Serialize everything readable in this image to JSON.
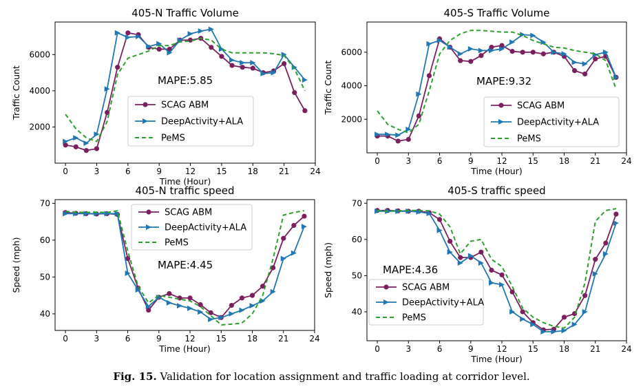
{
  "figure": {
    "caption_label": "Fig. 15.",
    "caption_text": "Validation for location assignment and traffic loading at corridor level."
  },
  "colors": {
    "scag": "#7b1f5e",
    "deep": "#1f77b4",
    "pems": "#2ca02c"
  },
  "chart_data": [
    {
      "type": "line",
      "title": "405-N Traffic Volume",
      "xlabel": "Time (Hour)",
      "ylabel": "Traffic Count",
      "xlim": [
        -1,
        24
      ],
      "ylim": [
        0,
        7800
      ],
      "xticks": [
        0,
        3,
        6,
        9,
        12,
        15,
        18,
        21,
        24
      ],
      "yticks": [
        2000,
        4000,
        6000
      ],
      "annotation": "MAPE:5.85",
      "legend": "center-right",
      "x": [
        0,
        1,
        2,
        3,
        4,
        5,
        6,
        7,
        8,
        9,
        10,
        11,
        12,
        13,
        14,
        15,
        16,
        17,
        18,
        19,
        20,
        21,
        22,
        23
      ],
      "series": [
        {
          "name": "SCAG ABM",
          "style": "circle",
          "values": [
            1000,
            900,
            700,
            800,
            2800,
            5300,
            7200,
            7100,
            6400,
            6300,
            6300,
            6800,
            6800,
            6900,
            6400,
            5900,
            5400,
            5300,
            5250,
            5000,
            5100,
            5500,
            3900,
            2900
          ]
        },
        {
          "name": "DeepActivity+ALA",
          "style": "triangle",
          "values": [
            1200,
            1400,
            1100,
            1600,
            4100,
            7200,
            6950,
            7000,
            6450,
            6600,
            6100,
            6800,
            7150,
            7300,
            7400,
            6300,
            5700,
            5550,
            5550,
            4950,
            5000,
            6000,
            5300,
            4600
          ]
        },
        {
          "name": "PeMS",
          "style": "dashed",
          "values": [
            2700,
            1900,
            1400,
            1200,
            2300,
            4900,
            5800,
            6000,
            6200,
            6500,
            6500,
            6700,
            6750,
            6900,
            6800,
            6300,
            6100,
            6100,
            6100,
            6100,
            6050,
            5950,
            5200,
            4000
          ]
        }
      ]
    },
    {
      "type": "line",
      "title": "405-S Traffic Volume",
      "xlabel": "Time (Hour)",
      "ylabel": "Traffic Count",
      "xlim": [
        -1,
        24
      ],
      "ylim": [
        0,
        7800
      ],
      "xticks": [
        0,
        3,
        6,
        9,
        12,
        15,
        18,
        21,
        24
      ],
      "yticks": [
        2000,
        4000,
        6000
      ],
      "annotation": "MAPE:9.32",
      "legend": "lower-right",
      "x": [
        0,
        1,
        2,
        3,
        4,
        5,
        6,
        7,
        8,
        9,
        10,
        11,
        12,
        13,
        14,
        15,
        16,
        17,
        18,
        19,
        20,
        21,
        22,
        23
      ],
      "series": [
        {
          "name": "SCAG ABM",
          "style": "circle",
          "values": [
            1000,
            1000,
            700,
            800,
            2200,
            4600,
            6800,
            6300,
            5500,
            5450,
            5800,
            6300,
            6400,
            6050,
            6000,
            6000,
            5900,
            6000,
            5750,
            4900,
            4700,
            5600,
            5750,
            4500
          ]
        },
        {
          "name": "DeepActivity+ALA",
          "style": "triangle",
          "values": [
            1100,
            1100,
            1050,
            1400,
            3500,
            6500,
            6700,
            6300,
            5900,
            6200,
            6100,
            6100,
            6200,
            6600,
            7050,
            7000,
            6600,
            6000,
            5900,
            5400,
            5300,
            5850,
            6000,
            4500
          ]
        },
        {
          "name": "PeMS",
          "style": "dashed",
          "values": [
            2500,
            1700,
            1400,
            1200,
            1700,
            3700,
            5900,
            6700,
            7100,
            7300,
            7300,
            7250,
            7200,
            7200,
            7000,
            6700,
            6500,
            6300,
            6250,
            6100,
            6000,
            5900,
            5500,
            3800
          ]
        }
      ]
    },
    {
      "type": "line",
      "title": "405-N traffic speed",
      "xlabel": "Time (Hour)",
      "ylabel": "Speed (mph)",
      "xlim": [
        -1,
        24
      ],
      "ylim": [
        35.5,
        71
      ],
      "xticks": [
        0,
        3,
        6,
        9,
        12,
        15,
        18,
        21,
        24
      ],
      "yticks": [
        40,
        50,
        60,
        70
      ],
      "annotation": "MAPE:4.45",
      "legend": "upper-center",
      "x": [
        0,
        1,
        2,
        3,
        4,
        5,
        6,
        7,
        8,
        9,
        10,
        11,
        12,
        13,
        14,
        15,
        16,
        17,
        18,
        19,
        20,
        21,
        22,
        23
      ],
      "series": [
        {
          "name": "SCAG ABM",
          "style": "circle",
          "values": [
            67.5,
            67.3,
            67.2,
            67.1,
            67.2,
            67.0,
            55.0,
            47.0,
            41.0,
            44.5,
            45.5,
            44.3,
            44.3,
            42.5,
            40.3,
            39.0,
            42.3,
            44.3,
            45.0,
            47.5,
            52.5,
            60.5,
            64.0,
            66.5
          ]
        },
        {
          "name": "DeepActivity+ALA",
          "style": "triangle",
          "values": [
            67.2,
            67.2,
            67.2,
            67.2,
            67.2,
            67.2,
            51.0,
            46.5,
            42.0,
            44.5,
            43.0,
            42.2,
            41.5,
            40.5,
            38.5,
            39.0,
            40.0,
            41.0,
            42.2,
            43.5,
            46.0,
            55.0,
            56.5,
            63.7
          ]
        },
        {
          "name": "PeMS",
          "style": "dashed",
          "values": [
            67.8,
            67.6,
            67.5,
            67.6,
            67.5,
            68.0,
            57.0,
            47.5,
            43.0,
            45.0,
            44.5,
            44.0,
            43.5,
            42.0,
            39.5,
            37.0,
            37.2,
            37.5,
            40.0,
            45.0,
            55.0,
            66.8,
            67.5,
            68.0
          ]
        }
      ]
    },
    {
      "type": "line",
      "title": "405-S traffic speed",
      "xlabel": "Time (Hour)",
      "ylabel": "Speed (mph)",
      "xlim": [
        -1,
        24
      ],
      "ylim": [
        32,
        71
      ],
      "xticks": [
        0,
        3,
        6,
        9,
        12,
        15,
        18,
        21,
        24
      ],
      "yticks": [
        40,
        50,
        60,
        70
      ],
      "annotation": "MAPE:4.36",
      "legend": "lower-left",
      "x": [
        0,
        1,
        2,
        3,
        4,
        5,
        6,
        7,
        8,
        9,
        10,
        11,
        12,
        13,
        14,
        15,
        16,
        17,
        18,
        19,
        20,
        21,
        22,
        23
      ],
      "series": [
        {
          "name": "SCAG ABM",
          "style": "circle",
          "values": [
            68.0,
            68.0,
            67.9,
            67.8,
            67.8,
            67.4,
            65.5,
            59.5,
            55.0,
            55.0,
            56.5,
            51.5,
            50.2,
            45.5,
            40.0,
            37.0,
            35.0,
            35.2,
            38.5,
            39.5,
            44.5,
            54.5,
            59.0,
            67.0
          ]
        },
        {
          "name": "DeepActivity+ALA",
          "style": "triangle",
          "values": [
            67.8,
            67.8,
            67.8,
            67.8,
            67.6,
            67.2,
            62.5,
            56.5,
            53.5,
            55.5,
            53.5,
            48.0,
            47.5,
            40.0,
            38.0,
            36.5,
            34.5,
            34.5,
            34.8,
            36.5,
            40.0,
            50.5,
            56.0,
            64.5
          ]
        },
        {
          "name": "PeMS",
          "style": "dashed",
          "values": [
            68.0,
            67.8,
            67.9,
            68.0,
            68.0,
            67.9,
            67.0,
            63.5,
            56.0,
            59.5,
            60.0,
            54.5,
            52.5,
            47.0,
            41.0,
            38.5,
            37.0,
            36.0,
            35.5,
            38.5,
            48.0,
            65.0,
            68.0,
            68.5
          ]
        }
      ]
    }
  ]
}
